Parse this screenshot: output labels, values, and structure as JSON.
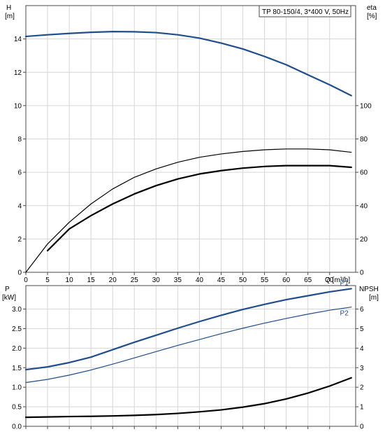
{
  "chart_data": [
    {
      "type": "line",
      "title": "TP 80-150/4, 3*400 V, 50Hz",
      "xlabel": "Q [m³/h]",
      "ylabel_left": "H",
      "ylabel_left_unit": "[m]",
      "ylabel_right": "eta",
      "ylabel_right_unit": "[%]",
      "xlim": [
        0,
        76
      ],
      "ylim_left": [
        0,
        16
      ],
      "ylim_right": [
        0,
        160
      ],
      "x_ticks": [
        "0",
        "5",
        "10",
        "15",
        "20",
        "25",
        "30",
        "35",
        "40",
        "45",
        "50",
        "55",
        "60",
        "65",
        "70"
      ],
      "y_left_ticks": [
        "0",
        "2",
        "4",
        "6",
        "8",
        "10",
        "12",
        "14"
      ],
      "y_right_ticks": [
        "0",
        "20",
        "40",
        "60",
        "80",
        "100"
      ],
      "grid": true,
      "series": [
        {
          "axis": "left",
          "color": "#1f4e8c",
          "width": 2.2,
          "x": [
            0,
            5,
            10,
            15,
            20,
            25,
            30,
            35,
            40,
            45,
            50,
            55,
            60,
            65,
            70,
            75
          ],
          "y": [
            14.15,
            14.25,
            14.33,
            14.4,
            14.44,
            14.43,
            14.38,
            14.25,
            14.05,
            13.75,
            13.4,
            12.95,
            12.45,
            11.85,
            11.25,
            10.6
          ]
        },
        {
          "axis": "right",
          "color": "#000000",
          "width": 1.2,
          "x": [
            0,
            5,
            10,
            15,
            20,
            25,
            30,
            35,
            40,
            45,
            50,
            55,
            60,
            65,
            70,
            75
          ],
          "y": [
            0,
            17,
            30,
            41,
            50,
            57,
            62,
            66,
            69,
            71,
            72.5,
            73.5,
            74,
            74,
            73.5,
            72
          ]
        },
        {
          "axis": "right",
          "color": "#000000",
          "width": 2.2,
          "x": [
            5,
            10,
            15,
            20,
            25,
            30,
            35,
            40,
            45,
            50,
            55,
            60,
            65,
            70,
            75
          ],
          "y": [
            13,
            26,
            34,
            41,
            47,
            52,
            56,
            59,
            61,
            62.5,
            63.5,
            64,
            64,
            64,
            63
          ]
        }
      ]
    },
    {
      "type": "line",
      "ylabel_left": "P",
      "ylabel_left_unit": "[kW]",
      "ylabel_right": "NPSH",
      "ylabel_right_unit": "[m]",
      "xlim": [
        0,
        76
      ],
      "ylim_left": [
        0,
        3.6
      ],
      "ylim_right": [
        0,
        7.2
      ],
      "y_left_ticks": [
        "0.0",
        "0.5",
        "1.0",
        "1.5",
        "2.0",
        "2.5",
        "3.0"
      ],
      "y_right_ticks": [
        "0",
        "1",
        "2",
        "3",
        "4",
        "5",
        "6"
      ],
      "grid": true,
      "series": [
        {
          "name": "P1",
          "axis": "left",
          "color": "#1f4e8c",
          "width": 2.2,
          "x": [
            0,
            5,
            10,
            15,
            20,
            25,
            30,
            35,
            40,
            45,
            50,
            55,
            60,
            65,
            70,
            75
          ],
          "y": [
            1.45,
            1.52,
            1.63,
            1.77,
            1.96,
            2.15,
            2.33,
            2.51,
            2.68,
            2.84,
            2.99,
            3.12,
            3.24,
            3.34,
            3.44,
            3.52
          ]
        },
        {
          "name": "P2",
          "axis": "left",
          "color": "#1f4e8c",
          "width": 1.2,
          "x": [
            0,
            5,
            10,
            15,
            20,
            25,
            30,
            35,
            40,
            45,
            50,
            55,
            60,
            65,
            70,
            75
          ],
          "y": [
            1.12,
            1.2,
            1.31,
            1.44,
            1.59,
            1.75,
            1.91,
            2.07,
            2.22,
            2.37,
            2.51,
            2.64,
            2.76,
            2.87,
            2.97,
            3.05
          ]
        },
        {
          "axis": "right",
          "color": "#000000",
          "width": 2.2,
          "x": [
            0,
            5,
            10,
            15,
            20,
            25,
            30,
            35,
            40,
            45,
            50,
            55,
            60,
            65,
            70,
            75
          ],
          "y": [
            0.46,
            0.48,
            0.5,
            0.51,
            0.53,
            0.56,
            0.6,
            0.66,
            0.74,
            0.84,
            0.98,
            1.16,
            1.4,
            1.7,
            2.06,
            2.48
          ]
        }
      ]
    }
  ]
}
